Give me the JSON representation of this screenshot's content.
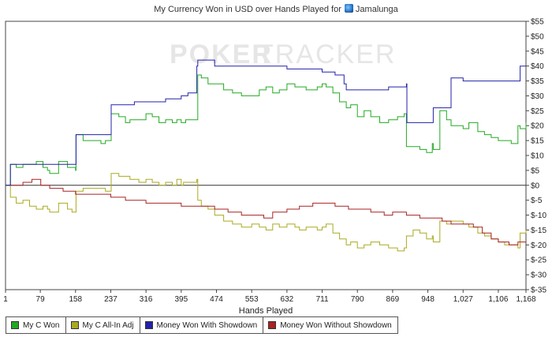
{
  "header": {
    "title_prefix": "My Currency Won in USD over Hands Played for",
    "player_name": "Jamalunga",
    "player_icon": "poker-avatar-icon"
  },
  "watermark": {
    "part1": "POKER",
    "part2": "TRACKER"
  },
  "chart_data": {
    "type": "line",
    "xlabel": "Hands Played",
    "ylabel": "",
    "xlim": [
      1,
      1168
    ],
    "ylim": [
      -35,
      55
    ],
    "x_ticks": [
      1,
      79,
      158,
      237,
      316,
      395,
      474,
      553,
      632,
      711,
      790,
      869,
      948,
      1027,
      1106,
      1168
    ],
    "x_tick_labels": [
      "1",
      "79",
      "158",
      "237",
      "316",
      "395",
      "474",
      "553",
      "632",
      "711",
      "790",
      "869",
      "948",
      "1,027",
      "1,106",
      "1,168"
    ],
    "y_ticks": [
      55,
      50,
      45,
      40,
      35,
      30,
      25,
      20,
      15,
      10,
      5,
      0,
      -5,
      -10,
      -15,
      -20,
      -25,
      -30,
      -35
    ],
    "y_tick_labels": [
      "$55",
      "$50",
      "$45",
      "$40",
      "$35",
      "$30",
      "$25",
      "$20",
      "$15",
      "$10",
      "$5",
      "$0",
      "$-5",
      "$-10",
      "$-15",
      "$-20",
      "$-25",
      "$-30",
      "$-35"
    ],
    "y_axis_side": "right",
    "zero_line": true,
    "grid": false,
    "legend_position": "bottom",
    "series": [
      {
        "name": "My C Won",
        "color": "#22aa22",
        "x": [
          1,
          10,
          12,
          25,
          40,
          55,
          70,
          85,
          95,
          100,
          120,
          140,
          150,
          158,
          159,
          175,
          195,
          215,
          225,
          235,
          237,
          238,
          255,
          270,
          280,
          300,
          316,
          330,
          345,
          360,
          375,
          385,
          395,
          400,
          405,
          430,
          432,
          440,
          455,
          470,
          490,
          510,
          530,
          553,
          570,
          585,
          600,
          615,
          632,
          650,
          660,
          675,
          690,
          700,
          711,
          720,
          735,
          750,
          765,
          775,
          790,
          805,
          820,
          840,
          860,
          880,
          895,
          900,
          915,
          930,
          945,
          958,
          960,
          975,
          990,
          1000,
          1027,
          1040,
          1060,
          1075,
          1090,
          1106,
          1120,
          1135,
          1150,
          1155,
          1168
        ],
        "y": [
          0,
          0,
          7,
          6,
          7,
          7,
          8,
          6,
          5,
          4,
          8,
          6,
          6,
          5,
          17,
          15,
          15,
          14,
          15,
          15,
          15,
          24,
          23,
          21,
          22,
          22,
          24,
          23,
          21,
          22,
          21,
          22,
          21,
          21,
          22,
          22,
          37,
          36,
          34,
          34,
          32,
          31,
          30,
          30,
          32,
          33,
          31,
          32,
          34,
          33,
          33,
          32,
          32,
          33,
          34,
          33,
          31,
          28,
          26,
          27,
          23,
          25,
          23,
          21,
          22,
          23,
          24,
          13,
          13,
          12,
          11,
          14,
          12,
          25,
          22,
          20,
          19,
          21,
          18,
          17,
          16,
          15,
          15,
          14,
          20,
          19,
          21
        ]
      },
      {
        "name": "My C All-In Adj",
        "color": "#aaaa22",
        "x": [
          1,
          10,
          12,
          25,
          40,
          55,
          70,
          85,
          95,
          100,
          120,
          140,
          150,
          158,
          159,
          175,
          195,
          215,
          225,
          235,
          237,
          238,
          255,
          270,
          280,
          300,
          316,
          330,
          345,
          360,
          375,
          385,
          395,
          400,
          405,
          430,
          432,
          440,
          455,
          470,
          490,
          510,
          530,
          553,
          570,
          585,
          600,
          615,
          632,
          650,
          660,
          675,
          690,
          700,
          711,
          720,
          735,
          750,
          765,
          775,
          790,
          805,
          820,
          840,
          860,
          880,
          895,
          900,
          915,
          930,
          945,
          958,
          960,
          975,
          990,
          1000,
          1027,
          1040,
          1060,
          1075,
          1090,
          1106,
          1120,
          1135,
          1150,
          1155,
          1168
        ],
        "y": [
          0,
          0,
          -4,
          -6,
          -5,
          -7,
          -8,
          -7,
          -8,
          -9,
          -6,
          -8,
          -9,
          -9,
          -2,
          -1,
          -1,
          -1,
          -2,
          -2,
          -2,
          4,
          3,
          3,
          2,
          1,
          2,
          1,
          0,
          1,
          0,
          2,
          0,
          1,
          1,
          2,
          -5,
          -7,
          -8,
          -10,
          -12,
          -13,
          -14,
          -13,
          -14,
          -15,
          -13,
          -14,
          -13,
          -14,
          -15,
          -14,
          -14,
          -15,
          -14,
          -13,
          -16,
          -18,
          -20,
          -19,
          -21,
          -20,
          -19,
          -20,
          -21,
          -22,
          -21,
          -17,
          -15,
          -16,
          -18,
          -17,
          -19,
          -12,
          -13,
          -12,
          -13,
          -14,
          -16,
          -17,
          -18,
          -19,
          -20,
          -20,
          -21,
          -16,
          -15
        ]
      },
      {
        "name": "Money Won With Showdown",
        "color": "#2222aa",
        "x": [
          1,
          10,
          12,
          40,
          100,
          158,
          159,
          200,
          237,
          238,
          260,
          290,
          316,
          317,
          360,
          395,
          410,
          430,
          432,
          470,
          520,
          553,
          600,
          632,
          670,
          711,
          740,
          760,
          765,
          790,
          860,
          900,
          901,
          958,
          960,
          1000,
          1027,
          1060,
          1100,
          1150,
          1155,
          1168
        ],
        "y": [
          0,
          0,
          7,
          7,
          7,
          7,
          17,
          17,
          17,
          27,
          27,
          28,
          28,
          28,
          29,
          30,
          31,
          40,
          42,
          40,
          40,
          40,
          40,
          39,
          39,
          38,
          37,
          34,
          32,
          32,
          33,
          34,
          21,
          21,
          26,
          36,
          35,
          35,
          35,
          35,
          40,
          40
        ]
      },
      {
        "name": "Money Won Without Showdown",
        "color": "#aa2222",
        "x": [
          1,
          20,
          40,
          60,
          80,
          100,
          130,
          158,
          190,
          237,
          270,
          316,
          350,
          395,
          430,
          470,
          500,
          530,
          553,
          580,
          600,
          632,
          660,
          690,
          711,
          740,
          770,
          790,
          820,
          850,
          869,
          900,
          930,
          948,
          980,
          1000,
          1027,
          1050,
          1070,
          1090,
          1106,
          1130,
          1150,
          1168
        ],
        "y": [
          0,
          0,
          1,
          2,
          0,
          -1,
          -2,
          -3,
          -3,
          -4,
          -5,
          -6,
          -6,
          -7,
          -7,
          -8,
          -9,
          -10,
          -10,
          -11,
          -9,
          -8,
          -7,
          -6,
          -6,
          -7,
          -8,
          -8,
          -9,
          -10,
          -9,
          -10,
          -11,
          -11,
          -12,
          -13,
          -13,
          -14,
          -16,
          -18,
          -19,
          -20,
          -19,
          -19
        ]
      }
    ]
  }
}
